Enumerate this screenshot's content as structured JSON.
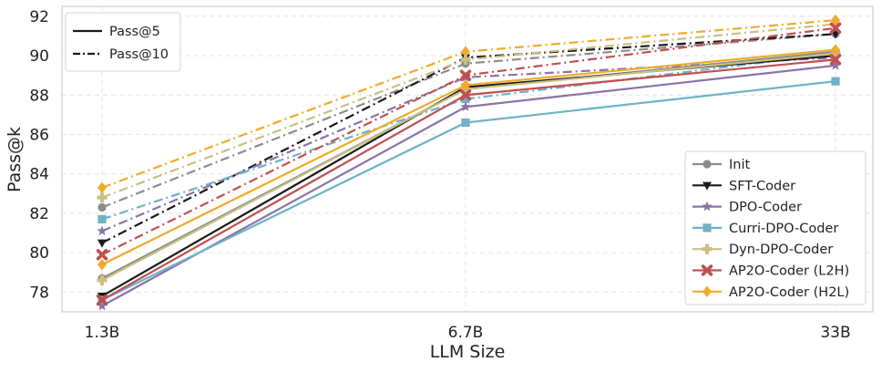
{
  "chart_data": {
    "type": "line",
    "xlabel": "LLM Size",
    "ylabel": "Pass@k",
    "categories": [
      "1.3B",
      "6.7B",
      "33B"
    ],
    "ylim": [
      77,
      92.5
    ],
    "yticks": [
      78,
      80,
      82,
      84,
      86,
      88,
      90,
      92
    ],
    "grid": true,
    "style_legend": {
      "placement": "top-left",
      "entries": [
        {
          "label": "Pass@5",
          "dash": "solid"
        },
        {
          "label": "Pass@10",
          "dash": "dashdot"
        }
      ]
    },
    "model_legend": {
      "placement": "bottom-right"
    },
    "series": [
      {
        "name": "Init",
        "color": "#8c8c8c",
        "marker": "circle",
        "pass5": [
          78.7,
          88.3,
          90.2
        ],
        "pass10": [
          82.3,
          89.6,
          91.1
        ]
      },
      {
        "name": "SFT-Coder",
        "color": "#1a1a1a",
        "marker": "triangle-down",
        "pass5": [
          77.8,
          88.4,
          90.0
        ],
        "pass10": [
          80.5,
          89.9,
          91.1
        ]
      },
      {
        "name": "DPO-Coder",
        "color": "#8c72a8",
        "marker": "star",
        "pass5": [
          77.3,
          87.4,
          89.5
        ],
        "pass10": [
          81.1,
          88.9,
          89.9
        ]
      },
      {
        "name": "Curri-DPO-Coder",
        "color": "#6fb2c8",
        "marker": "square",
        "pass5": [
          77.6,
          86.6,
          88.7
        ],
        "pass10": [
          81.7,
          87.8,
          90.1
        ]
      },
      {
        "name": "Dyn-DPO-Coder",
        "color": "#c9bf84",
        "marker": "plus",
        "pass5": [
          78.6,
          88.3,
          90.1
        ],
        "pass10": [
          82.8,
          89.8,
          91.6
        ]
      },
      {
        "name": "AP2O-Coder (L2H)",
        "color": "#c14f50",
        "marker": "x",
        "pass5": [
          77.6,
          88.0,
          89.8
        ],
        "pass10": [
          79.9,
          89.0,
          91.4
        ]
      },
      {
        "name": "AP2O-Coder (H2L)",
        "color": "#f0ab2a",
        "marker": "diamond",
        "pass5": [
          79.4,
          88.5,
          90.3
        ],
        "pass10": [
          83.3,
          90.2,
          91.8
        ]
      }
    ]
  }
}
